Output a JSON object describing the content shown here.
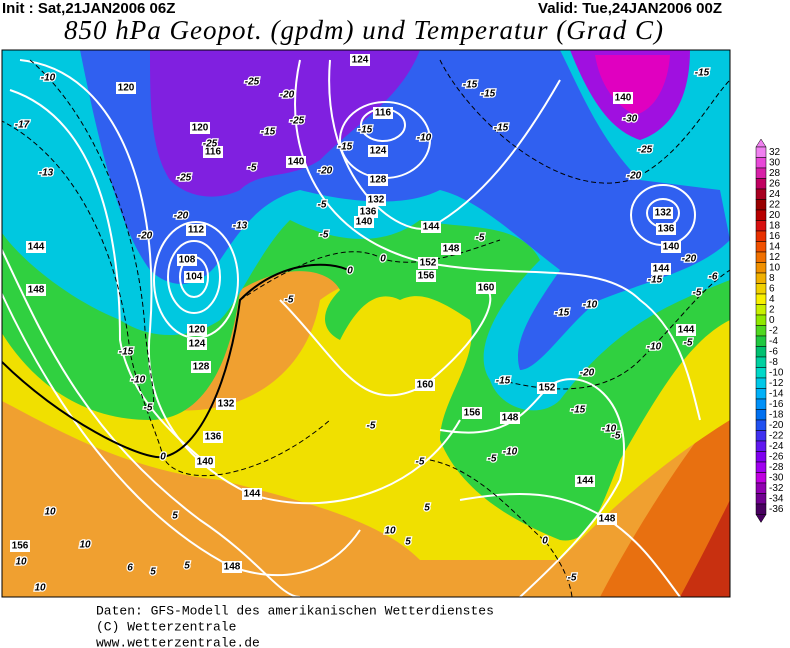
{
  "header": {
    "init": "Init : Sat,21JAN2006 06Z",
    "valid": "Valid: Tue,24JAN2006 00Z",
    "title": "850 hPa Geopot. (gpdm) und Temperatur (Grad C)"
  },
  "colorbar": {
    "ticks": [
      32,
      30,
      28,
      26,
      24,
      22,
      20,
      18,
      16,
      14,
      12,
      10,
      8,
      6,
      4,
      2,
      0,
      -2,
      -4,
      -6,
      -8,
      -10,
      -12,
      -14,
      -16,
      -18,
      -20,
      -22,
      -24,
      -26,
      -28,
      -30,
      -32,
      -34,
      -36
    ],
    "colors": [
      "#f080f0",
      "#e848d8",
      "#d820a8",
      "#c00060",
      "#a80020",
      "#980000",
      "#b80000",
      "#d81010",
      "#e83000",
      "#f05000",
      "#f07000",
      "#f09000",
      "#f0b000",
      "#f0d000",
      "#f8f000",
      "#c8f000",
      "#90e800",
      "#50d820",
      "#20c840",
      "#00c070",
      "#00d0a0",
      "#00d8c8",
      "#00c8e8",
      "#00b0f8",
      "#0090f8",
      "#0070f0",
      "#2050f0",
      "#4030f0",
      "#6018f0",
      "#8000f0",
      "#a000f0",
      "#c000e0",
      "#9000b0",
      "#700090",
      "#480060"
    ]
  },
  "contour_labels": {
    "geopotential": [
      "120",
      "124",
      "116",
      "120",
      "116",
      "140",
      "124",
      "128",
      "132",
      "136",
      "140",
      "112",
      "108",
      "104",
      "120",
      "124",
      "128",
      "132",
      "136",
      "140",
      "144",
      "148",
      "144",
      "148",
      "152",
      "156",
      "160",
      "160",
      "156",
      "148",
      "152",
      "144",
      "148",
      "144",
      "148",
      "156",
      "140",
      "132",
      "136",
      "140",
      "144",
      "144"
    ],
    "temperature": [
      "-10",
      "-17",
      "-13",
      "-20",
      "-15",
      "-10",
      "-5",
      "0",
      "-25",
      "-20",
      "-25",
      "-15",
      "-25",
      "-25",
      "-20",
      "-13",
      "-5",
      "-20",
      "-5",
      "-5",
      "-15",
      "-15",
      "-10",
      "-15",
      "-15",
      "-5",
      "0",
      "0",
      "-5",
      "-15",
      "-30",
      "-25",
      "-20",
      "-15",
      "-20",
      "-15",
      "-6",
      "-5",
      "-10",
      "-5",
      "-10",
      "-15",
      "-20",
      "-15",
      "-10",
      "-5",
      "-15",
      "-10",
      "-5",
      "-5",
      "-5",
      "0",
      "-5",
      "5",
      "5",
      "5",
      "10",
      "10",
      "10",
      "10",
      "6",
      "10",
      "5",
      "5"
    ]
  },
  "footer": [
    "Daten: GFS-Modell des amerikanischen Wetterdienstes",
    "(C) Wetterzentrale",
    "www.wetterzentrale.de"
  ]
}
